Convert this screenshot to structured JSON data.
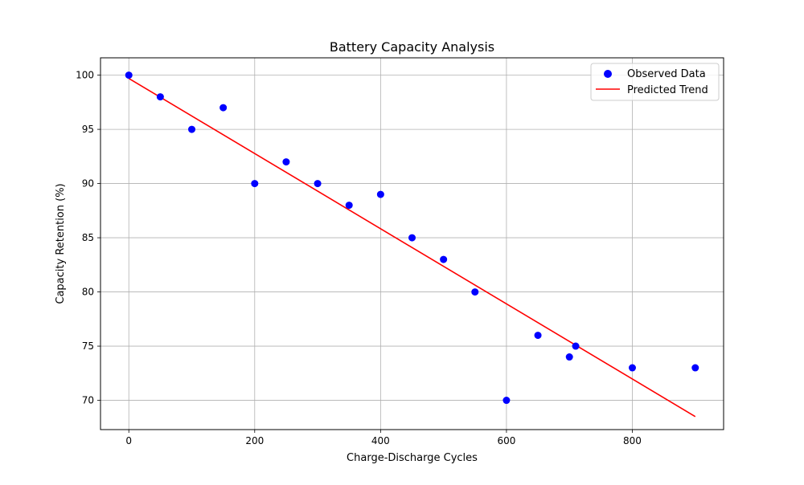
{
  "chart_data": {
    "type": "scatter",
    "title": "Battery Capacity Analysis",
    "xlabel": "Charge-Discharge Cycles",
    "ylabel": "Capacity Retention (%)",
    "xlim": [
      -45,
      945
    ],
    "ylim": [
      67.3,
      101.6
    ],
    "xticks": [
      0,
      200,
      400,
      600,
      800
    ],
    "yticks": [
      70,
      75,
      80,
      85,
      90,
      95,
      100
    ],
    "grid": true,
    "legend_position": "top-right",
    "series": [
      {
        "name": "Observed Data",
        "kind": "scatter",
        "color": "#0000ff",
        "x": [
          0,
          50,
          100,
          150,
          200,
          250,
          300,
          350,
          400,
          450,
          500,
          550,
          600,
          650,
          700,
          710,
          800,
          900
        ],
        "y": [
          100,
          98,
          95,
          97,
          90,
          92,
          90,
          88,
          89,
          85,
          83,
          80,
          70,
          76,
          74,
          75,
          73,
          73
        ]
      },
      {
        "name": "Predicted Trend",
        "kind": "line",
        "color": "#ff0000",
        "x": [
          0,
          900
        ],
        "y": [
          99.7,
          68.5
        ]
      }
    ]
  }
}
